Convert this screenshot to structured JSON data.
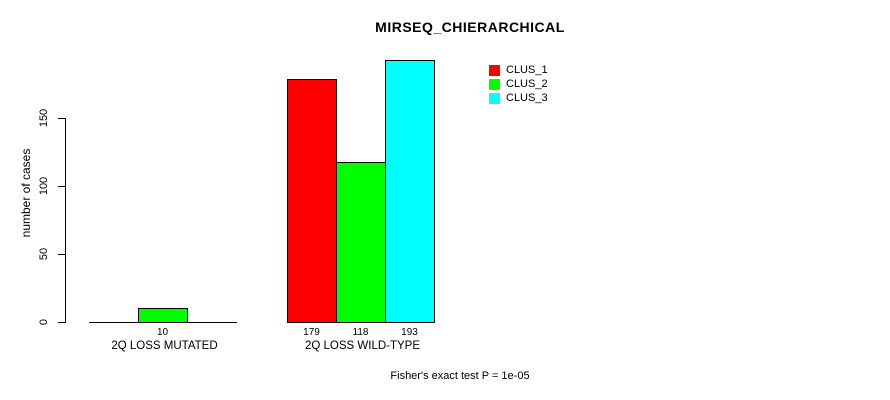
{
  "chart_data": {
    "type": "bar",
    "title": "MIRSEQ_CHIERARCHICAL",
    "ylabel": "number of cases",
    "xlabel": "",
    "ylim": [
      0,
      193
    ],
    "yticks": [
      0,
      50,
      100,
      150
    ],
    "grid": false,
    "legend_position": "top-right-inside",
    "categories": [
      "2Q LOSS MUTATED",
      "2Q LOSS WILD-TYPE"
    ],
    "series": [
      {
        "name": "CLUS_1",
        "color": "#ff0000",
        "values": [
          0,
          179
        ]
      },
      {
        "name": "CLUS_2",
        "color": "#00ff00",
        "values": [
          10,
          118
        ]
      },
      {
        "name": "CLUS_3",
        "color": "#00ffff",
        "values": [
          0,
          193
        ]
      }
    ],
    "bar_value_labels": [
      "10",
      "179",
      "118",
      "193"
    ],
    "footnote": "Fisher's exact test P = 1e-05"
  }
}
